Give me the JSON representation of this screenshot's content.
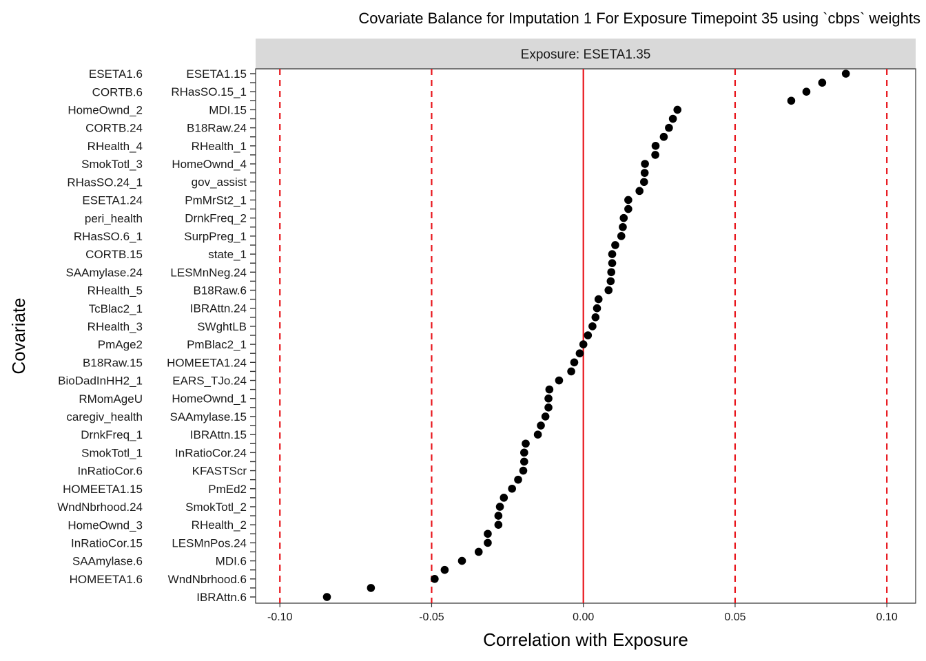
{
  "chart_data": {
    "type": "scatter",
    "title": "Covariate Balance for Imputation 1 For Exposure Timepoint 35 using `cbps` weights",
    "facet_label": "Exposure: ESETA1.35",
    "xlabel": "Correlation with Exposure",
    "ylabel": "Covariate",
    "xlim": [
      -0.108,
      0.1095
    ],
    "xticks": [
      -0.1,
      -0.05,
      0.0,
      0.05,
      0.1
    ],
    "xtick_labels": [
      "-0.10",
      "-0.05",
      "0.00",
      "0.05",
      "0.10"
    ],
    "reference_line": {
      "x": 0,
      "color": "#e8141b",
      "style": "solid"
    },
    "threshold_lines": {
      "x": [
        -0.1,
        -0.05,
        0.05,
        0.1
      ],
      "color": "#e8141b",
      "style": "dashed"
    },
    "point_color": "#000000",
    "grid": false,
    "covariates": [
      "IBRAttn.6",
      "HOMEETA1.6",
      "WndNbrhood.6",
      "SAAmylase.6",
      "MDI.6",
      "InRatioCor.15",
      "LESMnPos.24",
      "HomeOwnd_3",
      "RHealth_2",
      "WndNbrhood.24",
      "SmokTotl_2",
      "HOMEETA1.15",
      "PmEd2",
      "InRatioCor.6",
      "KFASTScr",
      "SmokTotl_1",
      "InRatioCor.24",
      "DrnkFreq_1",
      "IBRAttn.15",
      "caregiv_health",
      "SAAmylase.15",
      "RMomAgeU",
      "HomeOwnd_1",
      "BioDadInHH2_1",
      "EARS_TJo.24",
      "B18Raw.15",
      "HOMEETA1.24",
      "PmAge2",
      "PmBlac2_1",
      "RHealth_3",
      "SWghtLB",
      "TcBlac2_1",
      "IBRAttn.24",
      "RHealth_5",
      "B18Raw.6",
      "SAAmylase.24",
      "LESMnNeg.24",
      "CORTB.15",
      "state_1",
      "RHasSO.6_1",
      "SurpPreg_1",
      "peri_health",
      "DrnkFreq_2",
      "ESETA1.24",
      "PmMrSt2_1",
      "RHasSO.24_1",
      "gov_assist",
      "SmokTotl_3",
      "HomeOwnd_4",
      "RHealth_4",
      "RHealth_1",
      "CORTB.24",
      "B18Raw.24",
      "HomeOwnd_2",
      "MDI.15",
      "CORTB.6",
      "RHasSO.15_1",
      "ESETA1.6",
      "ESETA1.15"
    ],
    "values": [
      -0.0845,
      -0.07,
      -0.049,
      -0.0457,
      -0.04,
      -0.0345,
      -0.0315,
      -0.0315,
      -0.028,
      -0.028,
      -0.0275,
      -0.0262,
      -0.0235,
      -0.0215,
      -0.0198,
      -0.0195,
      -0.0195,
      -0.019,
      -0.015,
      -0.014,
      -0.0125,
      -0.0115,
      -0.0115,
      -0.0112,
      -0.008,
      -0.004,
      -0.003,
      -0.0012,
      0.0,
      0.0015,
      0.003,
      0.004,
      0.0045,
      0.005,
      0.0083,
      0.009,
      0.0092,
      0.0095,
      0.0095,
      0.0105,
      0.0125,
      0.013,
      0.0133,
      0.0148,
      0.0148,
      0.0185,
      0.02,
      0.0202,
      0.0203,
      0.0237,
      0.0238,
      0.0265,
      0.0282,
      0.0295,
      0.031,
      0.0685,
      0.0735,
      0.0787,
      0.0865
    ]
  }
}
